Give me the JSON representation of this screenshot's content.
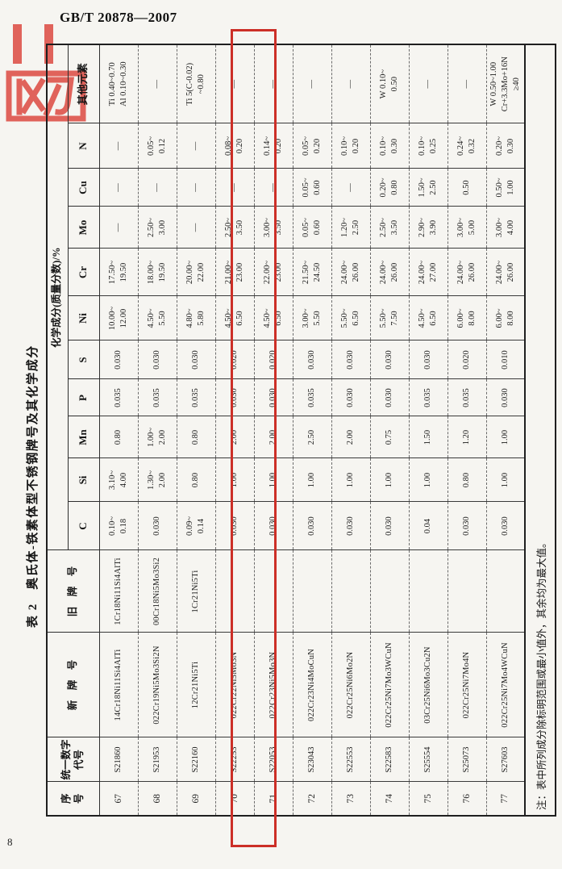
{
  "page": {
    "doc_code": "GB/T 20878—2007",
    "page_number": "8",
    "table_title": "表 2　奥氏体-铁素体型不锈钢牌号及其化学成分",
    "note": "注：表中所列成分除标明范围或最小值外，其余均为最大值。"
  },
  "colors": {
    "highlight_red": "#cc2f27",
    "stamp_red": "#dd4a41",
    "paper": "#f6f5f1",
    "ink": "#1b1b1b"
  },
  "table": {
    "headers": {
      "seq": "序\n号",
      "code": "统一数字\n代号",
      "new_grade": "新　牌　号",
      "old_grade": "旧　牌　号",
      "chem": "化学成分(质量分数)/%",
      "elements": [
        "C",
        "Si",
        "Mn",
        "P",
        "S",
        "Ni",
        "Cr",
        "Mo",
        "Cu",
        "N",
        "其他元素"
      ]
    },
    "rows": [
      {
        "seq": "67",
        "code": "S21860",
        "new_grade": "14Cr18Ni11Si4AlTi",
        "old_grade": "1Cr18Ni11Si4AlTi",
        "c": "0.10~\n0.18",
        "si": "3.10~\n4.00",
        "mn": "0.80",
        "p": "0.035",
        "s": "0.030",
        "ni": "10.00~\n12.00",
        "cr": "17.50~\n19.50",
        "mo": "—",
        "cu": "—",
        "n": "—",
        "other": "Ti 0.40~0.70\nAl 0.10~0.30"
      },
      {
        "seq": "68",
        "code": "S21953",
        "new_grade": "022Cr19Ni5Mo3Si2N",
        "old_grade": "00Cr18Ni5Mo3Si2",
        "c": "0.030",
        "si": "1.30~\n2.00",
        "mn": "1.00~\n2.00",
        "p": "0.035",
        "s": "0.030",
        "ni": "4.50~\n5.50",
        "cr": "18.00~\n19.50",
        "mo": "2.50~\n3.00",
        "cu": "—",
        "n": "0.05~\n0.12",
        "other": "—"
      },
      {
        "seq": "69",
        "code": "S22160",
        "new_grade": "12Cr21Ni5Ti",
        "old_grade": "1Cr21Ni5Ti",
        "c": "0.09~\n0.14",
        "si": "0.80",
        "mn": "0.80",
        "p": "0.035",
        "s": "0.030",
        "ni": "4.80~\n5.80",
        "cr": "20.00~\n22.00",
        "mo": "—",
        "cu": "—",
        "n": "—",
        "other": "Ti 5(C-0.02)\n~0.80"
      },
      {
        "seq": "70",
        "code": "S22253",
        "new_grade": "022Cr22Ni5Mo3N",
        "old_grade": "",
        "c": "0.030",
        "si": "1.00",
        "mn": "2.00",
        "p": "0.030",
        "s": "0.020",
        "ni": "4.50~\n6.50",
        "cr": "21.00~\n23.00",
        "mo": "2.50~\n3.50",
        "cu": "—",
        "n": "0.08~\n0.20",
        "other": "—"
      },
      {
        "seq": "71",
        "code": "S22053",
        "new_grade": "022Cr23Ni5Mo3N",
        "old_grade": "",
        "c": "0.030",
        "si": "1.00",
        "mn": "2.00",
        "p": "0.030",
        "s": "0.020",
        "ni": "4.50~\n6.50",
        "cr": "22.00~\n23.00",
        "mo": "3.00~\n3.50",
        "cu": "—",
        "n": "0.14~\n0.20",
        "other": "—"
      },
      {
        "seq": "72",
        "code": "S23043",
        "new_grade": "022Cr23Ni4MoCuN",
        "old_grade": "",
        "c": "0.030",
        "si": "1.00",
        "mn": "2.50",
        "p": "0.035",
        "s": "0.030",
        "ni": "3.00~\n5.50",
        "cr": "21.50~\n24.50",
        "mo": "0.05~\n0.60",
        "cu": "0.05~\n0.60",
        "n": "0.05~\n0.20",
        "other": "—"
      },
      {
        "seq": "73",
        "code": "S22553",
        "new_grade": "022Cr25Ni6Mo2N",
        "old_grade": "",
        "c": "0.030",
        "si": "1.00",
        "mn": "2.00",
        "p": "0.030",
        "s": "0.030",
        "ni": "5.50~\n6.50",
        "cr": "24.00~\n26.00",
        "mo": "1.20~\n2.50",
        "cu": "—",
        "n": "0.10~\n0.20",
        "other": "—"
      },
      {
        "seq": "74",
        "code": "S22583",
        "new_grade": "022Cr25Ni7Mo3WCuN",
        "old_grade": "",
        "c": "0.030",
        "si": "1.00",
        "mn": "0.75",
        "p": "0.030",
        "s": "0.030",
        "ni": "5.50~\n7.50",
        "cr": "24.00~\n26.00",
        "mo": "2.50~\n3.50",
        "cu": "0.20~\n0.80",
        "n": "0.10~\n0.30",
        "other": "W 0.10~\n0.50"
      },
      {
        "seq": "75",
        "code": "S25554",
        "new_grade": "03Cr25Ni6Mo3Cu2N",
        "old_grade": "",
        "c": "0.04",
        "si": "1.00",
        "mn": "1.50",
        "p": "0.035",
        "s": "0.030",
        "ni": "4.50~\n6.50",
        "cr": "24.00~\n27.00",
        "mo": "2.90~\n3.90",
        "cu": "1.50~\n2.50",
        "n": "0.10~\n0.25",
        "other": "—"
      },
      {
        "seq": "76",
        "code": "S25073",
        "new_grade": "022Cr25Ni7Mo4N",
        "old_grade": "",
        "c": "0.030",
        "si": "0.80",
        "mn": "1.20",
        "p": "0.035",
        "s": "0.020",
        "ni": "6.00~\n8.00",
        "cr": "24.00~\n26.00",
        "mo": "3.00~\n5.00",
        "cu": "0.50",
        "n": "0.24~\n0.32",
        "other": "—"
      },
      {
        "seq": "77",
        "code": "S27603",
        "new_grade": "022Cr25Ni7Mo4WCuN",
        "old_grade": "",
        "c": "0.030",
        "si": "1.00",
        "mn": "1.00",
        "p": "0.030",
        "s": "0.010",
        "ni": "6.00~\n8.00",
        "cr": "24.00~\n26.00",
        "mo": "3.00~\n4.00",
        "cu": "0.50~\n1.00",
        "n": "0.20~\n0.30",
        "other": "W  0.50~1.00\nCr+3.3Mo+16N\n≥40"
      }
    ]
  }
}
